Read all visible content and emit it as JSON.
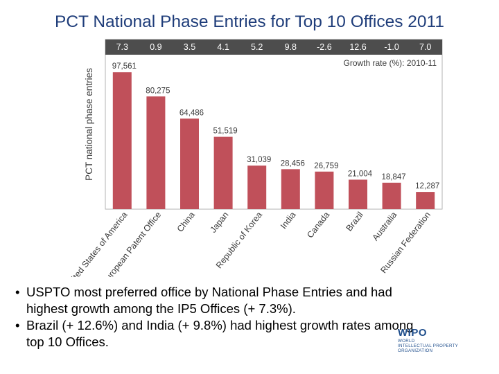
{
  "slide": {
    "title": "PCT National Phase Entries for Top 10 Offices 2011",
    "bullets": [
      "USPTO most preferred office by National Phase Entries and had highest growth among the IP5 Offices (+ 7.3%).",
      "Brazil (+ 12.6%) and India (+ 9.8%) had highest growth rates among top 10 Offices."
    ]
  },
  "logo": {
    "name": "WIPO",
    "line1": "WORLD",
    "line2": "INTELLECTUAL PROPERTY",
    "line3": "ORGANIZATION"
  },
  "colors": {
    "bar": "#c0505a",
    "header_band": "#4d4d4d",
    "title": "#1f3d7a"
  },
  "chart_data": {
    "type": "bar",
    "ylabel": "PCT national phase entries",
    "growth_label": "Growth rate (%): 2010-11",
    "categories": [
      "United States of America",
      "European Patent Office",
      "China",
      "Japan",
      "Republic of Korea",
      "India",
      "Canada",
      "Brazil",
      "Australia",
      "Russian Federation"
    ],
    "values": [
      97561,
      80275,
      64486,
      51519,
      31039,
      28456,
      26759,
      21004,
      18847,
      12287
    ],
    "value_labels": [
      "97,561",
      "80,275",
      "64,486",
      "51,519",
      "31,039",
      "28,456",
      "26,759",
      "21,004",
      "18,847",
      "12,287"
    ],
    "growth_rates": [
      "7.3",
      "0.9",
      "3.5",
      "4.1",
      "5.2",
      "9.8",
      "-2.6",
      "12.6",
      "-1.0",
      "7.0"
    ],
    "ylim": [
      0,
      110000
    ]
  }
}
